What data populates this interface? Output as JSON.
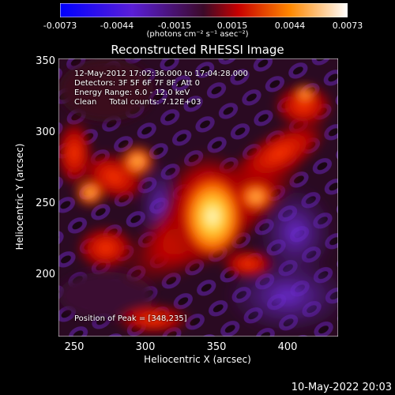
{
  "colorbar": {
    "ticks": [
      "-0.0073",
      "-0.0044",
      "-0.0015",
      "0.0015",
      "0.0044",
      "0.0073"
    ],
    "units": "(photons cm⁻² s⁻¹ asec⁻²)"
  },
  "title": "Reconstructed RHESSI Image",
  "info": {
    "time": "12-May-2012 17:02:36.000 to 17:04:28.000",
    "detectors": "Detectors: 3F 5F 6F 7F 8F, Att 0",
    "energy": "Energy Range: 6.0 - 12.0 keV",
    "clean": "Clean     Total counts: 7.12E+03",
    "peak": "Position of Peak = [348,235]"
  },
  "axes": {
    "xlabel": "Heliocentric X (arcsec)",
    "ylabel": "Heliocentric Y (arcsec)",
    "xticks": [
      "250",
      "300",
      "350",
      "400"
    ],
    "yticks": [
      "350",
      "300",
      "250",
      "200"
    ]
  },
  "footer": "10-May-2022 20:03"
}
